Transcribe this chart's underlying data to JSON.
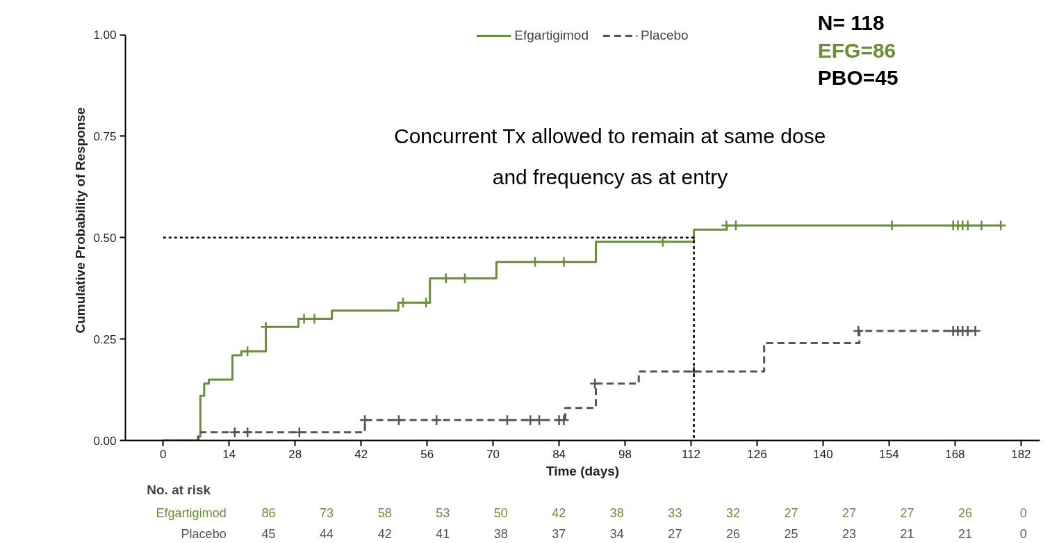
{
  "chart_data": [
    {
      "type": "step",
      "xlabel": "Time (days)",
      "ylabel": "Cumulative Probability of Response",
      "xlim": [
        -8,
        186
      ],
      "ylim": [
        0,
        1.0
      ],
      "xticks": [
        0,
        14,
        28,
        42,
        56,
        70,
        84,
        98,
        112,
        126,
        140,
        154,
        168,
        182
      ],
      "yticks": [
        {
          "value": 0,
          "label": "0.00"
        },
        {
          "value": 0.25,
          "label": "0.25"
        },
        {
          "value": 0.5,
          "label": "0.50"
        },
        {
          "value": 0.75,
          "label": "0.75"
        },
        {
          "value": 1.0,
          "label": "1.00"
        }
      ],
      "grid": false,
      "legend": "top",
      "annotations": [
        "N= 118",
        "EFG=86",
        "PBO=45",
        "Concurrent Tx allowed to remain at same dose\nand frequency as at entry"
      ],
      "series": [
        {
          "name": "Efgartigimod",
          "type": "step",
          "color": "#6a8f38",
          "line_style": "solid",
          "x": [
            0,
            7.4,
            7.9,
            8.7,
            9.7,
            14.7,
            16.6,
            21.8,
            28.7,
            35.8,
            49.9,
            56.6,
            70.7,
            91.8,
            112.6,
            119.6,
            177.7
          ],
          "values": [
            0,
            0.01,
            0.11,
            0.14,
            0.15,
            0.21,
            0.22,
            0.28,
            0.3,
            0.32,
            0.34,
            0.4,
            0.44,
            0.49,
            0.52,
            0.53,
            0.53
          ]
        },
        {
          "name": "Placebo",
          "type": "step",
          "color": "#555555",
          "line_style": "dashed",
          "x": [
            0,
            7.5,
            42.8,
            85.3,
            91.8,
            100.9,
            127.5,
            147.7,
            172.5
          ],
          "values": [
            0,
            0.02,
            0.05,
            0.08,
            0.14,
            0.17,
            0.24,
            0.27,
            0.27
          ]
        },
        {
          "type": "scatter",
          "marker": "cross",
          "color": "#6a8f38",
          "x": [
            17.9,
            21.8,
            29.9,
            32.1,
            50.9,
            55.8,
            60,
            64,
            78.9,
            85,
            106,
            119.5,
            121.5,
            154.6,
            167.6,
            168.6,
            169.6,
            170.7,
            173.6,
            177.7
          ],
          "values": [
            0.22,
            0.28,
            0.3,
            0.3,
            0.34,
            0.34,
            0.4,
            0.4,
            0.44,
            0.44,
            0.49,
            0.53,
            0.53,
            0.53,
            0.53,
            0.53,
            0.53,
            0.53,
            0.53,
            0.53
          ]
        },
        {
          "type": "scatter",
          "marker": "cross",
          "color": "#555555",
          "x": [
            15.2,
            17.9,
            28.9,
            42.8,
            50,
            58,
            73,
            77.9,
            79.8,
            84,
            85,
            91.6,
            112.6,
            147.5,
            167.6,
            168.6,
            169.6,
            170.7,
            172.3
          ],
          "values": [
            0.02,
            0.02,
            0.02,
            0.05,
            0.05,
            0.05,
            0.05,
            0.05,
            0.05,
            0.05,
            0.05,
            0.14,
            0.17,
            0.27,
            0.27,
            0.27,
            0.27,
            0.27,
            0.27
          ]
        },
        {
          "type": "line",
          "color": "#000000",
          "line_style": "dotted",
          "x": [
            0,
            112.6,
            112.6
          ],
          "values": [
            0.5,
            0.5,
            0
          ]
        }
      ]
    },
    {
      "type": "heatmap",
      "title": "No. at risk",
      "data_labels": true,
      "categories": [
        null,
        null,
        null,
        null,
        null,
        null,
        null,
        null,
        null,
        null,
        null,
        null,
        null,
        null
      ],
      "y_categories": [
        "Efgartigimod",
        "Placebo"
      ],
      "cells": [
        [
          86,
          73,
          58,
          53,
          50,
          42,
          38,
          33,
          32,
          27,
          27,
          27,
          26,
          0
        ],
        [
          45,
          44,
          42,
          41,
          38,
          37,
          34,
          27,
          26,
          25,
          23,
          21,
          21,
          0
        ]
      ]
    }
  ]
}
